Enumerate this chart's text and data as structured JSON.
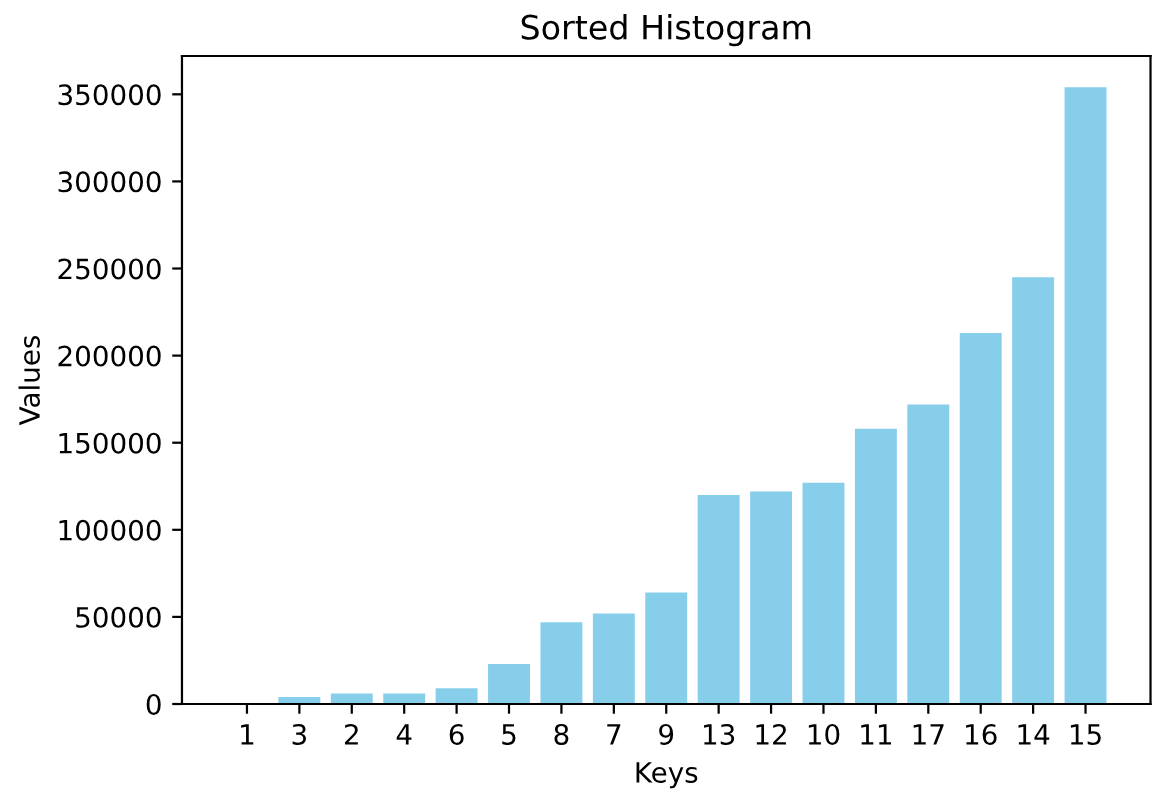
{
  "chart_data": {
    "type": "bar",
    "title": "Sorted Histogram",
    "xlabel": "Keys",
    "ylabel": "Values",
    "categories": [
      "1",
      "3",
      "2",
      "4",
      "6",
      "5",
      "8",
      "7",
      "9",
      "13",
      "12",
      "10",
      "11",
      "17",
      "16",
      "14",
      "15"
    ],
    "values": [
      0,
      4000,
      6000,
      6000,
      9000,
      23000,
      47000,
      52000,
      64000,
      120000,
      122000,
      127000,
      158000,
      172000,
      213000,
      245000,
      354000
    ],
    "color": "#87ceeb",
    "ylim": [
      0,
      372000
    ],
    "yticks": [
      0,
      50000,
      100000,
      150000,
      200000,
      250000,
      300000,
      350000
    ]
  }
}
